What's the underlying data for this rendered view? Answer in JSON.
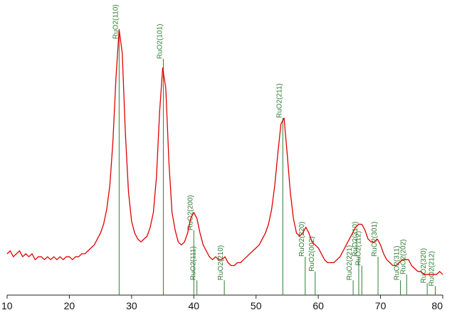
{
  "chart_data": {
    "type": "line",
    "xlim": [
      10,
      80
    ],
    "ylim": [
      0,
      100
    ],
    "xticks": [
      10,
      20,
      30,
      40,
      50,
      60,
      70,
      80
    ],
    "x": [
      10,
      10.5,
      11,
      11.5,
      12,
      12.5,
      13,
      13.5,
      14,
      14.5,
      15,
      15.5,
      16,
      16.5,
      17,
      17.5,
      18,
      18.5,
      19,
      19.5,
      20,
      20.5,
      21,
      21.5,
      22,
      22.5,
      23,
      23.5,
      24,
      24.5,
      25,
      25.5,
      26,
      26.5,
      27,
      27.5,
      28,
      28.5,
      29,
      29.5,
      30,
      30.5,
      31,
      31.5,
      32,
      32.5,
      33,
      33.5,
      34,
      34.5,
      35,
      35.5,
      36,
      36.5,
      37,
      37.5,
      38,
      38.5,
      39,
      39.5,
      40,
      40.5,
      41,
      41.5,
      42,
      42.5,
      43,
      43.5,
      44,
      44.5,
      45,
      45.5,
      46,
      46.5,
      47,
      47.5,
      48,
      48.5,
      49,
      49.5,
      50,
      50.5,
      51,
      51.5,
      52,
      52.5,
      53,
      53.5,
      54,
      54.5,
      55,
      55.5,
      56,
      56.5,
      57,
      57.5,
      58,
      58.5,
      59,
      59.5,
      60,
      60.5,
      61,
      61.5,
      62,
      62.5,
      63,
      63.5,
      64,
      64.5,
      65,
      65.5,
      66,
      66.5,
      67,
      67.5,
      68,
      68.5,
      69,
      69.5,
      70,
      70.5,
      71,
      71.5,
      72,
      72.5,
      73,
      73.5,
      74,
      74.5,
      75,
      75.5,
      76,
      76.5,
      77,
      77.5,
      78,
      78.5,
      79,
      79.5,
      80
    ],
    "series": [
      {
        "color": "#e00000",
        "values": [
          14,
          15,
          13,
          14,
          15,
          13,
          14,
          13,
          14,
          12,
          13,
          13,
          12,
          13,
          12,
          13,
          12,
          13,
          12,
          13,
          13,
          12,
          13,
          13,
          14,
          14,
          15,
          16,
          17,
          19,
          21,
          24,
          29,
          37,
          52,
          74,
          90,
          82,
          55,
          35,
          25,
          21,
          19,
          18,
          19,
          20,
          23,
          28,
          40,
          62,
          77,
          70,
          45,
          28,
          22,
          18,
          17,
          18,
          21,
          26,
          28,
          26,
          21,
          17,
          15,
          13,
          12,
          13,
          12,
          12,
          13,
          11,
          10,
          10,
          11,
          11,
          12,
          13,
          14,
          15,
          16,
          17,
          19,
          21,
          24,
          29,
          37,
          48,
          58,
          60,
          48,
          35,
          26,
          21,
          20,
          21,
          23,
          21,
          18,
          17,
          16,
          14,
          12,
          11,
          11,
          11,
          12,
          13,
          15,
          17,
          19,
          21,
          23,
          24,
          24,
          22,
          19,
          18,
          18,
          19,
          17,
          14,
          12,
          11,
          10,
          10,
          11,
          12,
          12,
          12,
          10,
          9,
          8,
          8,
          7,
          7,
          7,
          7,
          7,
          8,
          7
        ]
      }
    ],
    "reference": {
      "color": "#2e7d32",
      "lines": [
        {
          "x": 28.0,
          "value": 90,
          "label": "RuO2(110)"
        },
        {
          "x": 35.1,
          "value": 80,
          "label": "RuO2(101)"
        },
        {
          "x": 40.0,
          "value": 22,
          "label": "RuO2(200)"
        },
        {
          "x": 40.5,
          "value": 5,
          "label": "RuO2(111)"
        },
        {
          "x": 44.9,
          "value": 5,
          "label": "RuO2(210)"
        },
        {
          "x": 54.3,
          "value": 60,
          "label": "RuO2(211)"
        },
        {
          "x": 57.9,
          "value": 13,
          "label": "RuO2(220)"
        },
        {
          "x": 59.5,
          "value": 8,
          "label": "RuO2(002)"
        },
        {
          "x": 65.6,
          "value": 5,
          "label": "RuO2(221)"
        },
        {
          "x": 66.5,
          "value": 13,
          "label": "RuO2(310)"
        },
        {
          "x": 67.0,
          "value": 10,
          "label": "RuO2(112)"
        },
        {
          "x": 69.6,
          "value": 13,
          "label": "RuO2(301)"
        },
        {
          "x": 73.2,
          "value": 5,
          "label": "RuO2(311)"
        },
        {
          "x": 74.2,
          "value": 7,
          "label": "RuO2(202)"
        },
        {
          "x": 77.5,
          "value": 4,
          "label": "RuO2(320)"
        },
        {
          "x": 78.8,
          "value": 3,
          "label": "RuO2(212)"
        }
      ]
    }
  }
}
